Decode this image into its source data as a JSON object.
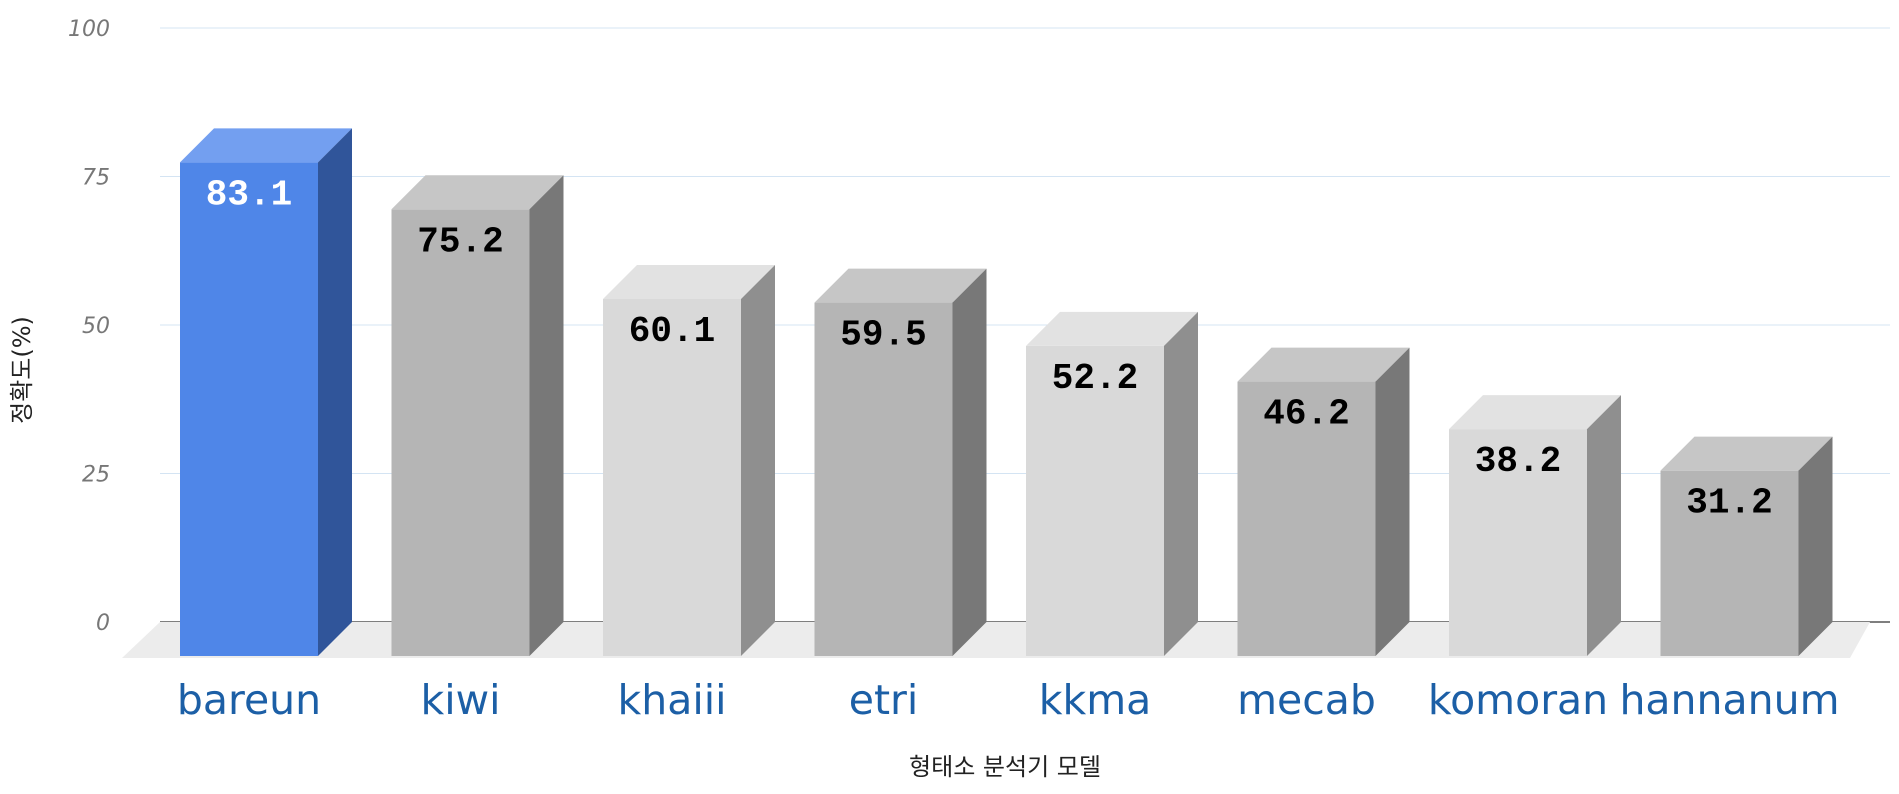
{
  "chart_data": {
    "type": "bar",
    "categories": [
      "bareun",
      "kiwi",
      "khaiii",
      "etri",
      "kkma",
      "mecab",
      "komoran",
      "hannanum"
    ],
    "values": [
      83.1,
      75.2,
      60.1,
      59.5,
      52.2,
      46.2,
      38.2,
      31.2
    ],
    "value_labels": [
      "83.1",
      "75.2",
      "60.1",
      "59.5",
      "52.2",
      "46.2",
      "38.2",
      "31.2"
    ],
    "xlabel": "형태소 분석기 모델",
    "ylabel": "정확도(%)",
    "ylim": [
      0,
      100
    ],
    "yticks": [
      0,
      25,
      50,
      75,
      100
    ],
    "grid": true,
    "legend": "none",
    "bar_style": "3d",
    "colors": {
      "highlight": "#4f86e8",
      "highlight_top": "#739ff0",
      "highlight_side": "#30559a",
      "gray_dark_front": "#b5b5b5",
      "gray_dark_top": "#c6c6c6",
      "gray_dark_side": "#787878",
      "gray_light_front": "#d9d9d9",
      "gray_light_top": "#e2e2e2",
      "gray_light_side": "#8f8f8f",
      "floor": "#ececec",
      "grid": "#d4e4f3",
      "tick_label": "#777777",
      "category_label": "#1c5fa6",
      "highlight_value_label": "#ffffff",
      "value_label": "#000000"
    },
    "bar_color_roles": [
      "highlight",
      "dark",
      "light",
      "dark",
      "light",
      "dark",
      "light",
      "dark"
    ]
  }
}
